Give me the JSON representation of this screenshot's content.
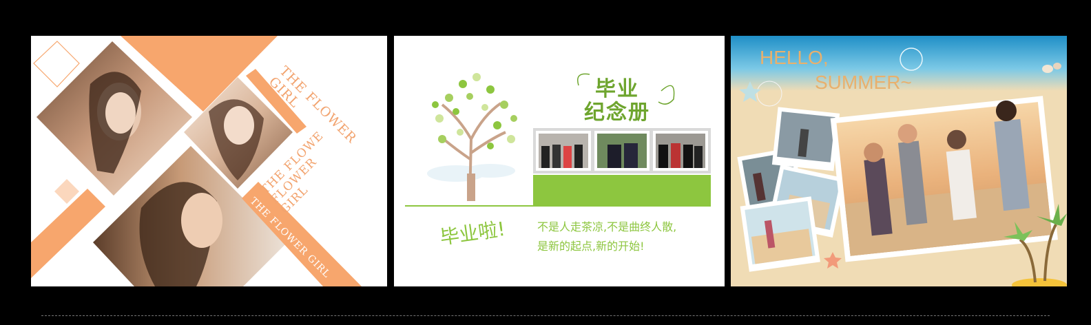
{
  "colors": {
    "background": "#000000",
    "orange": "#f7a66d",
    "orange_light": "#fbd7bd",
    "green": "#8dc63f",
    "green_dark": "#6ea52e",
    "beach_sand": "#f0dcb5",
    "sky_blue": "#5ab0d8"
  },
  "panel1": {
    "texts": {
      "the_flower_girl_top": "THE FLOWER GIRL",
      "flowe_flower_girl": "THE FLOWE FLOWER GIRL",
      "the_flower_girl_bottom": "THE FLOWER GIRL"
    },
    "photos": [
      "photo-woman-left",
      "photo-woman-right",
      "photo-woman-bottom"
    ]
  },
  "panel2": {
    "title_line1": "毕业",
    "title_line2": "纪念册",
    "cheer": "毕业啦!",
    "body_line1": "不是人走茶凉,不是曲终人散,",
    "body_line2": "是新的起点,新的开始!"
  },
  "panel3": {
    "headline_line1": "HELLO,",
    "headline_line2": "SUMMER~"
  }
}
